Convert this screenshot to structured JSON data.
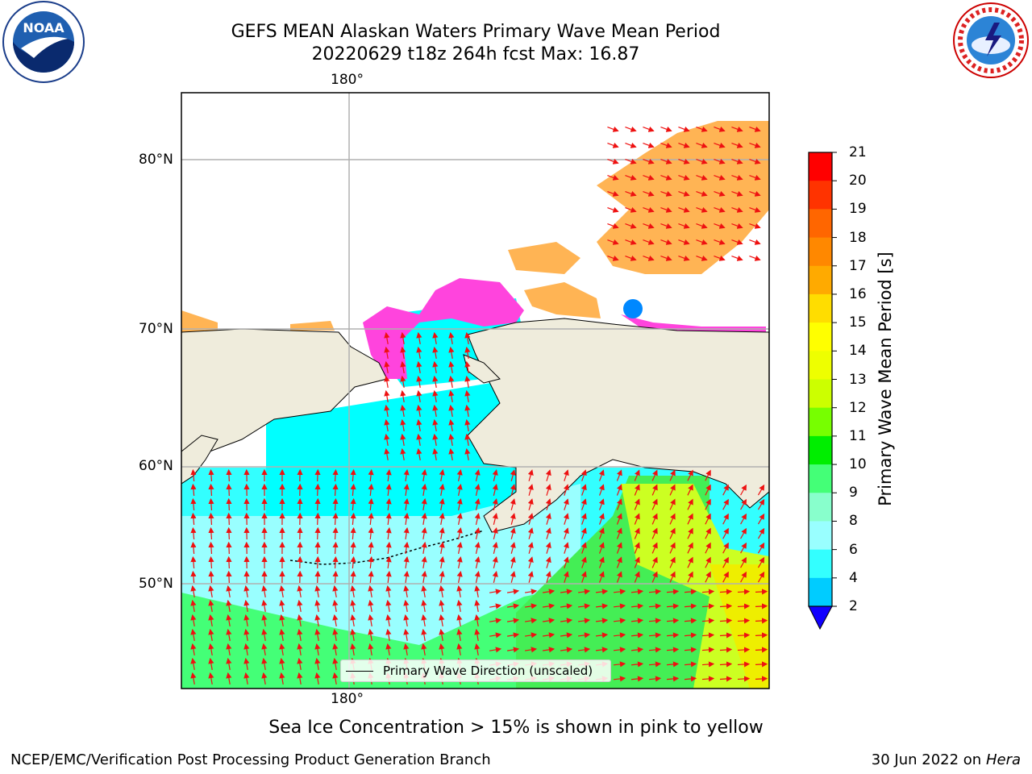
{
  "title": {
    "line1": "GEFS MEAN Alaskan Waters Primary Wave Mean Period",
    "line2": "20220629 t18z 264h fcst   Max: 16.87"
  },
  "logos": {
    "left": "NOAA",
    "right_text": "NATIONAL WEATHER SERVICE"
  },
  "map": {
    "lon_labels": [
      "180°",
      "180°"
    ],
    "lat_labels": [
      "80°N",
      "70°N",
      "60°N",
      "50°N"
    ],
    "colors": {
      "land": "#efecdc",
      "ice_pink": "#ff44dd",
      "ice_orange": "#ffb454",
      "arrow": "#ee1111",
      "grid": "#b0b0b0"
    },
    "legend_label": "Primary Wave Direction (unscaled)"
  },
  "colorbar": {
    "label": "Primary Wave Mean Period [s]",
    "ticks": [
      "21",
      "20",
      "19",
      "18",
      "17",
      "16",
      "15",
      "14",
      "13",
      "12",
      "11",
      "10",
      "9",
      "8",
      "6",
      "4",
      "2"
    ],
    "colors": [
      "#ff0000",
      "#ff3300",
      "#ff6600",
      "#ff8800",
      "#ffaa00",
      "#ffdd00",
      "#ffff00",
      "#eeff00",
      "#ccff00",
      "#77ff00",
      "#00ee00",
      "#44ff77",
      "#88ffcc",
      "#99ffff",
      "#33ffff",
      "#00ccff",
      "#0066ff"
    ],
    "extend_color": "#1100ff"
  },
  "subtitle": "Sea Ice Concentration > 15% is shown in pink to yellow",
  "footer": {
    "left": "NCEP/EMC/Verification Post Processing Product Generation Branch",
    "date": "30 Jun 2022 on",
    "machine": "Hera"
  }
}
